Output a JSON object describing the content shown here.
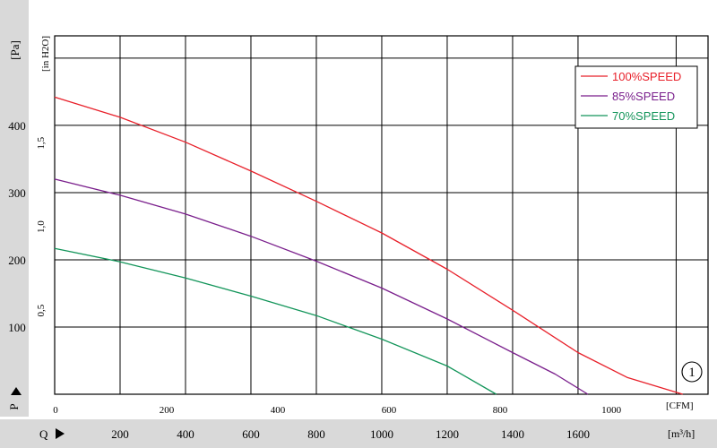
{
  "chart_data": {
    "type": "line",
    "title": "",
    "left_axis": {
      "unit_label": "[Pa]",
      "ticks": [
        100,
        200,
        300,
        400
      ],
      "range": [
        0,
        533
      ],
      "symbol": "P"
    },
    "inner_axis": {
      "unit_label": "[in H2O]",
      "ticks": [
        "0,5",
        "1,0",
        "1,5"
      ],
      "tick_values": [
        0.5,
        1.0,
        1.5
      ]
    },
    "cfm_axis": {
      "unit_label": "[CFM]",
      "ticks": [
        0,
        200,
        400,
        600,
        800,
        1000
      ],
      "range": [
        0,
        1200
      ]
    },
    "m3h_axis": {
      "unit_label": "[m³/h]",
      "ticks": [
        200,
        400,
        600,
        800,
        1000,
        1200,
        1400,
        1600
      ],
      "range": [
        0,
        2000
      ],
      "symbol": "Q"
    },
    "grid": true,
    "legend_position": "top-right",
    "curve_marker": "1",
    "series": [
      {
        "name": "100%SPEED",
        "color": "#e8202a",
        "x_m3h": [
          0,
          200,
          400,
          600,
          800,
          1000,
          1200,
          1400,
          1600,
          1750,
          1920
        ],
        "y_pa": [
          442,
          412,
          375,
          332,
          287,
          240,
          186,
          125,
          62,
          25,
          0
        ]
      },
      {
        "name": "85%SPEED",
        "color": "#7a1f8c",
        "x_m3h": [
          0,
          200,
          400,
          600,
          800,
          1000,
          1200,
          1400,
          1530,
          1630
        ],
        "y_pa": [
          320,
          296,
          268,
          235,
          198,
          158,
          112,
          62,
          30,
          0
        ]
      },
      {
        "name": "70%SPEED",
        "color": "#13955a",
        "x_m3h": [
          0,
          200,
          400,
          600,
          800,
          1000,
          1200,
          1350
        ],
        "y_pa": [
          217,
          197,
          173,
          146,
          117,
          82,
          42,
          0
        ]
      }
    ]
  }
}
